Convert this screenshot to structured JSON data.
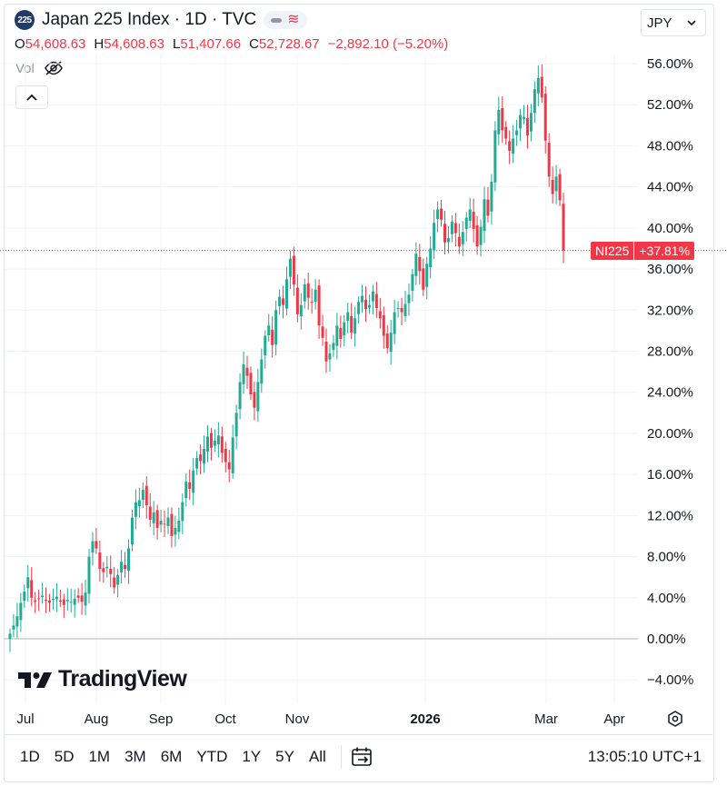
{
  "header": {
    "symbol_badge": "225",
    "title": "Japan 225 Index · 1D · TVC"
  },
  "ohlc": {
    "o_label": "O",
    "o_value": "54,608.63",
    "h_label": "H",
    "h_value": "54,608.63",
    "l_label": "L",
    "l_value": "51,407.66",
    "c_label": "C",
    "c_value": "52,728.67",
    "change": "−2,892.10 (−5.20%)"
  },
  "volume": {
    "label": "Vol"
  },
  "currency": {
    "value": "JPY"
  },
  "price_tag": {
    "symbol": "NI225",
    "value": "+37.81%"
  },
  "branding": {
    "text": "TradingView"
  },
  "bottom_bar": {
    "ranges": [
      "1D",
      "5D",
      "1M",
      "3M",
      "6M",
      "YTD",
      "1Y",
      "5Y",
      "All"
    ],
    "time": "13:05:10 UTC+1"
  },
  "colors": {
    "up": "#22ab94",
    "down": "#f23645",
    "grid": "#f0f3fa",
    "text": "#131722"
  },
  "chart_data": {
    "type": "candlestick",
    "title": "Japan 225 Index · 1D · TVC",
    "y_unit": "percent",
    "y_ticks": [
      "56.00%",
      "52.00%",
      "48.00%",
      "44.00%",
      "40.00%",
      "36.00%",
      "32.00%",
      "28.00%",
      "24.00%",
      "20.00%",
      "16.00%",
      "12.00%",
      "8.00%",
      "4.00%",
      "0.00%",
      "−4.00%"
    ],
    "y_tick_values": [
      56,
      52,
      48,
      44,
      40,
      36,
      32,
      28,
      24,
      20,
      16,
      12,
      8,
      4,
      0,
      -4
    ],
    "ylim": [
      -5.5,
      57.5
    ],
    "x_ticks": [
      "Jul",
      "Aug",
      "Sep",
      "Oct",
      "Nov",
      "2026",
      "Mar",
      "Apr"
    ],
    "grid": true,
    "last_value_percent": 37.81,
    "series": [
      {
        "values_close_percent": [
          0.5,
          1.3,
          2.2,
          3.5,
          4.6,
          6.0,
          4.0,
          3.6,
          3.9,
          4.2,
          3.8,
          3.5,
          3.9,
          4.1,
          3.7,
          3.3,
          3.8,
          3.6,
          3.9,
          4.0,
          3.6,
          4.5,
          8.0,
          9.5,
          8.8,
          6.8,
          6.5,
          7.0,
          6.3,
          5.0,
          6.2,
          7.5,
          6.8,
          8.8,
          11.8,
          13.3,
          13.5,
          14.5,
          13.0,
          11.6,
          12.3,
          10.8,
          11.5,
          11.2,
          11.8,
          10.0,
          10.8,
          11.5,
          13.3,
          15.3,
          14.6,
          16.4,
          17.6,
          17.3,
          18.5,
          19.7,
          18.6,
          19.3,
          19.8,
          18.1,
          17.2,
          16.5,
          19.6,
          22.0,
          25.0,
          26.7,
          25.6,
          23.8,
          22.5,
          25.0,
          27.2,
          29.5,
          30.5,
          28.6,
          32.0,
          33.3,
          32.5,
          35.0,
          37.0,
          34.5,
          31.6,
          32.5,
          34.5,
          33.2,
          32.8,
          34.0,
          30.5,
          29.3,
          27.0,
          27.8,
          28.8,
          30.5,
          29.2,
          30.8,
          31.8,
          29.8,
          31.2,
          32.8,
          33.4,
          32.1,
          32.5,
          33.8,
          32.2,
          31.2,
          29.5,
          28.3,
          29.8,
          31.8,
          32.2,
          31.8,
          32.6,
          33.5,
          35.5,
          37.5,
          35.8,
          34.0,
          36.5,
          38.0,
          40.5,
          41.8,
          40.8,
          38.6,
          39.0,
          40.6,
          39.5,
          38.2,
          39.6,
          41.0,
          41.8,
          39.9,
          38.2,
          40.1,
          42.8,
          41.2,
          44.5,
          49.5,
          51.5,
          49.5,
          48.7,
          47.5,
          48.7,
          49.5,
          51.0,
          50.8,
          49.0,
          51.2,
          53.5,
          54.6,
          52.7,
          48.5,
          45.0,
          43.3,
          45.0,
          42.7,
          37.8
        ]
      }
    ]
  }
}
